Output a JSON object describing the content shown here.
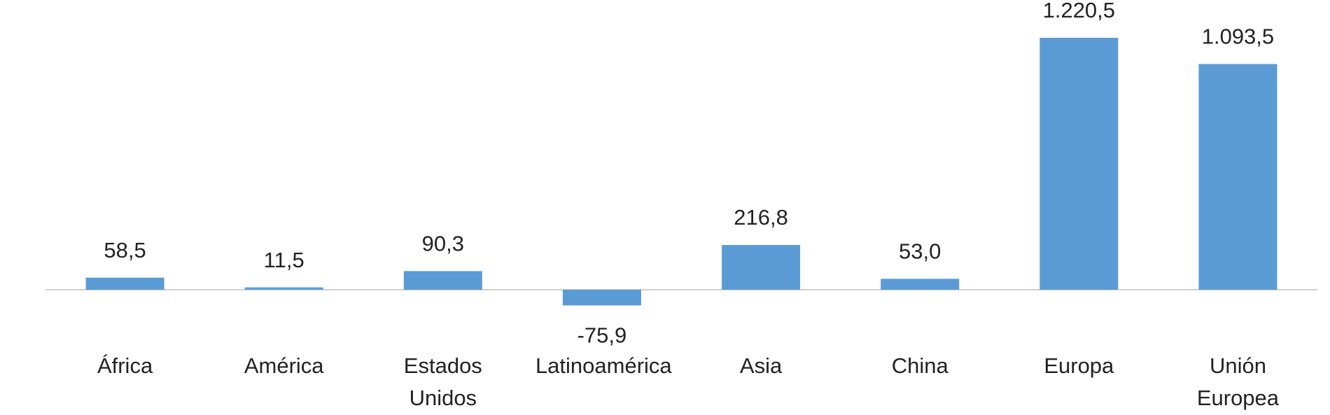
{
  "chart_data": {
    "type": "bar",
    "categories": [
      "África",
      "América",
      "Estados Unidos",
      "Latinoamérica",
      "Asia",
      "China",
      "Europa",
      "Unión Europea"
    ],
    "values": [
      58.5,
      11.5,
      90.3,
      -75.9,
      216.8,
      53.0,
      1220.5,
      1093.5
    ],
    "value_labels": [
      "58,5",
      "11,5",
      "90,3",
      "-75,9",
      "216,8",
      "53,0",
      "1.220,5",
      "1.093,5"
    ],
    "color": "#5b9bd5"
  }
}
